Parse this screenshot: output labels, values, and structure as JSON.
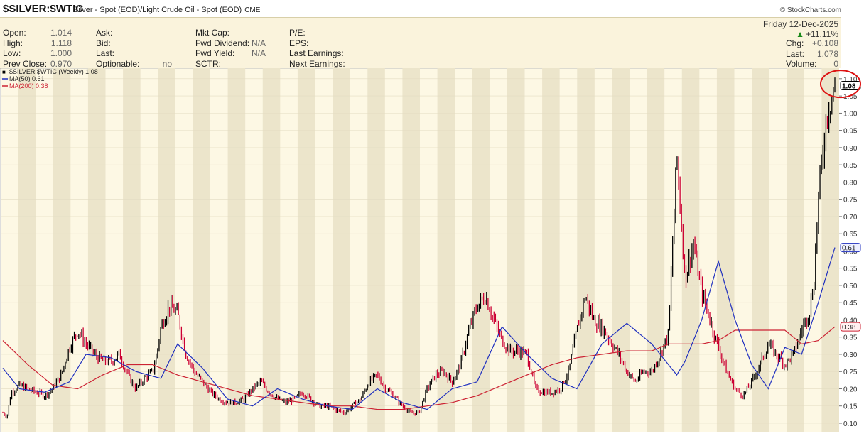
{
  "header": {
    "symbol": "$SILVER:$WTIC",
    "description": "Silver - Spot (EOD)/Light Crude Oil - Spot (EOD)",
    "exchange": "CME",
    "brand": "© StockCharts.com"
  },
  "stats": {
    "col1": [
      {
        "label": "Open:",
        "value": "1.014"
      },
      {
        "label": "High:",
        "value": "1.118"
      },
      {
        "label": "Low:",
        "value": "1.000"
      },
      {
        "label": "Prev Close:",
        "value": "0.970"
      }
    ],
    "col2": [
      {
        "label": "Ask:",
        "value": ""
      },
      {
        "label": "Bid:",
        "value": ""
      },
      {
        "label": "Last:",
        "value": ""
      },
      {
        "label": "Optionable:",
        "value": "no"
      }
    ],
    "col3": [
      {
        "label": "Mkt Cap:",
        "value": ""
      },
      {
        "label": "Fwd Dividend:",
        "value": "N/A"
      },
      {
        "label": "Fwd Yield:",
        "value": "N/A"
      },
      {
        "label": "SCTR:",
        "value": ""
      }
    ],
    "col4": [
      {
        "label": "P/E:",
        "value": ""
      },
      {
        "label": "EPS:",
        "value": ""
      },
      {
        "label": "Last Earnings:",
        "value": ""
      },
      {
        "label": "Next Earnings:",
        "value": ""
      }
    ],
    "date": "Friday  12-Dec-2025",
    "pct_change": "+11.11%",
    "right": [
      {
        "label": "Chg:",
        "value": "+0.108"
      },
      {
        "label": "Last:",
        "value": "1.078"
      },
      {
        "label": "Volume:",
        "value": "0"
      }
    ]
  },
  "chart_data": {
    "type": "line",
    "legend": {
      "placement": "top-left",
      "entries": [
        {
          "text": "$SILVER:$WTIC (Weekly) 1.08",
          "color": "#000000"
        },
        {
          "text": "MA(50) 0.61",
          "color": "#1f2fbf"
        },
        {
          "text": "MA(200) 0.38",
          "color": "#cc2233"
        }
      ]
    },
    "ylim": [
      0.1,
      1.11
    ],
    "y_ticks": [
      "0.10",
      "0.15",
      "0.20",
      "0.25",
      "0.30",
      "0.35",
      "0.40",
      "0.45",
      "0.50",
      "0.55",
      "0.60",
      "0.65",
      "0.70",
      "0.75",
      "0.80",
      "0.85",
      "0.90",
      "0.95",
      "1.00",
      "1.05",
      "1.10"
    ],
    "last_values": {
      "price": "1.08",
      "ma50": "0.61",
      "ma200": "0.38"
    },
    "colors": {
      "up": "#000000",
      "down": "#cc0033",
      "ma50": "#1f2fbf",
      "ma200": "#cc2233",
      "panel": "#faf3dc"
    },
    "series": [
      {
        "name": "$SILVER:$WTIC (Weekly)",
        "x": [
          0,
          0.5,
          1,
          2,
          3,
          4,
          5,
          6,
          7,
          8,
          9,
          10,
          11,
          12,
          13,
          14,
          15,
          16,
          17,
          18,
          18.5,
          19,
          20,
          21,
          22,
          23,
          24,
          25,
          26,
          27,
          28,
          29,
          30,
          31,
          32,
          33,
          34,
          35,
          36,
          37,
          38,
          39,
          40,
          41,
          42,
          43,
          44,
          45,
          46,
          47,
          48,
          49,
          50,
          51,
          52,
          53,
          54,
          55,
          56,
          57,
          58,
          59,
          60,
          61,
          62,
          63,
          64,
          65,
          66,
          67,
          68,
          68.5,
          69,
          70,
          71,
          72,
          73,
          74,
          75,
          76,
          77,
          78,
          79,
          80,
          81,
          82,
          83,
          84,
          85,
          86,
          87,
          88,
          89,
          90,
          91,
          92,
          93,
          94,
          95,
          96,
          97,
          97.5,
          98,
          99,
          100
        ],
        "values": [
          0.13,
          0.12,
          0.19,
          0.21,
          0.2,
          0.19,
          0.18,
          0.2,
          0.24,
          0.32,
          0.37,
          0.33,
          0.3,
          0.28,
          0.28,
          0.3,
          0.24,
          0.2,
          0.23,
          0.25,
          0.3,
          0.38,
          0.44,
          0.42,
          0.3,
          0.25,
          0.22,
          0.19,
          0.17,
          0.16,
          0.16,
          0.17,
          0.2,
          0.22,
          0.19,
          0.17,
          0.16,
          0.17,
          0.19,
          0.17,
          0.15,
          0.15,
          0.14,
          0.13,
          0.15,
          0.17,
          0.22,
          0.24,
          0.2,
          0.18,
          0.15,
          0.13,
          0.13,
          0.2,
          0.24,
          0.25,
          0.22,
          0.27,
          0.37,
          0.44,
          0.47,
          0.4,
          0.34,
          0.31,
          0.31,
          0.3,
          0.2,
          0.19,
          0.19,
          0.2,
          0.25,
          0.31,
          0.37,
          0.47,
          0.4,
          0.38,
          0.34,
          0.3,
          0.25,
          0.22,
          0.25,
          0.25,
          0.3,
          0.36,
          0.88,
          0.52,
          0.62,
          0.48,
          0.4,
          0.32,
          0.25,
          0.2,
          0.18,
          0.22,
          0.27,
          0.33,
          0.3,
          0.27,
          0.3,
          0.37,
          0.43,
          0.52,
          0.75,
          1.0,
          1.08
        ]
      },
      {
        "name": "MA(50)",
        "x": [
          0,
          2,
          5,
          8,
          10,
          13,
          16,
          19,
          21,
          24,
          27,
          30,
          33,
          36,
          39,
          42,
          45,
          48,
          51,
          54,
          57,
          60,
          63,
          66,
          69,
          72,
          75,
          78,
          81,
          82,
          84,
          86,
          88,
          90,
          92,
          94,
          96,
          98,
          100
        ],
        "values": [
          0.26,
          0.2,
          0.19,
          0.22,
          0.3,
          0.29,
          0.25,
          0.23,
          0.33,
          0.26,
          0.17,
          0.15,
          0.2,
          0.17,
          0.15,
          0.14,
          0.2,
          0.16,
          0.14,
          0.2,
          0.22,
          0.38,
          0.3,
          0.23,
          0.2,
          0.33,
          0.39,
          0.33,
          0.24,
          0.28,
          0.4,
          0.57,
          0.4,
          0.27,
          0.2,
          0.32,
          0.3,
          0.45,
          0.61
        ]
      },
      {
        "name": "MA(200)",
        "x": [
          0,
          3,
          6,
          9,
          12,
          15,
          18,
          21,
          24,
          27,
          30,
          33,
          36,
          39,
          42,
          45,
          48,
          51,
          54,
          57,
          60,
          63,
          66,
          69,
          72,
          75,
          78,
          80,
          82,
          84,
          86,
          88,
          90,
          92,
          94,
          96,
          98,
          100
        ],
        "values": [
          0.34,
          0.27,
          0.21,
          0.2,
          0.24,
          0.27,
          0.27,
          0.24,
          0.22,
          0.2,
          0.18,
          0.17,
          0.16,
          0.15,
          0.15,
          0.14,
          0.14,
          0.15,
          0.16,
          0.18,
          0.21,
          0.24,
          0.27,
          0.29,
          0.3,
          0.31,
          0.31,
          0.33,
          0.33,
          0.33,
          0.34,
          0.37,
          0.37,
          0.37,
          0.37,
          0.33,
          0.34,
          0.38
        ]
      }
    ]
  }
}
